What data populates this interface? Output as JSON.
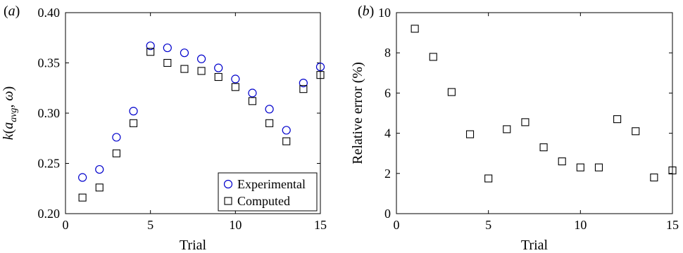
{
  "chart_data": [
    {
      "type": "scatter",
      "panel_label": "(a)",
      "xlabel": "Trial",
      "ylabel": "k(a_avg, ω)",
      "xlim": [
        0,
        15
      ],
      "ylim": [
        0.2,
        0.4
      ],
      "xticks": [
        0,
        5,
        10,
        15
      ],
      "yticks": [
        "0.20",
        "0.25",
        "0.30",
        "0.35",
        "0.40"
      ],
      "grid": false,
      "legend_position": "bottom-right",
      "series": [
        {
          "name": "Experimental",
          "marker": "circle",
          "color": "#0000cc",
          "x": [
            1,
            2,
            3,
            4,
            5,
            6,
            7,
            8,
            9,
            10,
            11,
            12,
            13,
            14,
            15
          ],
          "y": [
            0.236,
            0.244,
            0.276,
            0.302,
            0.367,
            0.365,
            0.36,
            0.354,
            0.345,
            0.334,
            0.32,
            0.304,
            0.283,
            0.33,
            0.346
          ]
        },
        {
          "name": "Computed",
          "marker": "square",
          "color": "#000000",
          "x": [
            1,
            2,
            3,
            4,
            5,
            6,
            7,
            8,
            9,
            10,
            11,
            12,
            13,
            14,
            15
          ],
          "y": [
            0.216,
            0.226,
            0.26,
            0.29,
            0.361,
            0.35,
            0.344,
            0.342,
            0.336,
            0.326,
            0.312,
            0.29,
            0.272,
            0.324,
            0.338
          ]
        }
      ]
    },
    {
      "type": "scatter",
      "panel_label": "(b)",
      "xlabel": "Trial",
      "ylabel": "Relative error (%)",
      "xlim": [
        0,
        15
      ],
      "ylim": [
        0,
        10
      ],
      "xticks": [
        0,
        5,
        10,
        15
      ],
      "yticks": [
        "0",
        "2",
        "4",
        "6",
        "8",
        "10"
      ],
      "grid": false,
      "series": [
        {
          "marker": "square",
          "color": "#000000",
          "x": [
            1,
            2,
            3,
            4,
            5,
            6,
            7,
            8,
            9,
            10,
            11,
            12,
            13,
            14,
            15
          ],
          "y": [
            9.2,
            7.8,
            6.05,
            3.95,
            1.75,
            4.2,
            4.55,
            3.3,
            2.6,
            2.3,
            2.3,
            4.7,
            4.1,
            1.8,
            2.15
          ]
        }
      ]
    }
  ]
}
